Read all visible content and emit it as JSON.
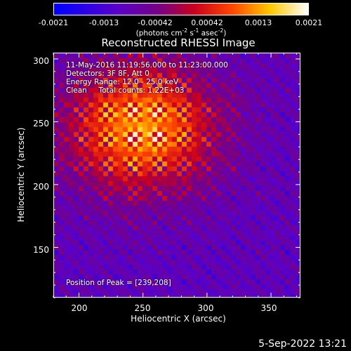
{
  "colorbar": {
    "ticks": [
      "-0.0021",
      "-0.0013",
      "-0.00042",
      "0.00042",
      "0.0013",
      "0.0021"
    ],
    "unit_prefix": "(photons cm",
    "unit_exp1": "-2",
    "unit_mid1": " s",
    "unit_exp2": "-1",
    "unit_mid2": " asec",
    "unit_exp3": "-2",
    "unit_suffix": ")"
  },
  "title": "Reconstructed RHESSI Image",
  "annotations": {
    "line1": "11-May-2016 11:19:56.000 to 11:23:00.000",
    "line2": "Detectors: 3F 8F, Att 0",
    "line3": "Energy Range: 12.0 - 25.0 keV",
    "line4": "Clean     Total counts: 1.22E+03",
    "peak": "Position of Peak = [239,208]"
  },
  "axes": {
    "xlabel": "Heliocentric X (arcsec)",
    "ylabel": "Heliocentric Y (arcsec)",
    "xticks": [
      "200",
      "250",
      "300",
      "350"
    ],
    "yticks": [
      "300",
      "250",
      "200",
      "150"
    ]
  },
  "footer": {
    "date": "5-Sep-2022 13:21"
  },
  "chart_data": {
    "type": "heatmap",
    "title": "Reconstructed RHESSI Image",
    "xlabel": "Heliocentric X (arcsec)",
    "ylabel": "Heliocentric Y (arcsec)",
    "xlim": [
      180,
      373
    ],
    "ylim": [
      110,
      305
    ],
    "zlim": [
      -0.0021,
      0.0021
    ],
    "colormap": "blue-purple-red-orange-yellow-white",
    "peak": [
      239,
      208
    ],
    "source_center": [
      248,
      246
    ],
    "fringe_period_x": 9.5,
    "fringe_period_y": 9.5,
    "grid": false
  }
}
